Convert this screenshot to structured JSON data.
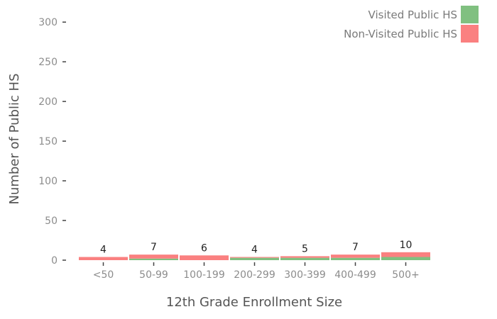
{
  "chart_data": {
    "type": "bar",
    "stacked": true,
    "xlabel": "12th Grade Enrollment Size",
    "ylabel": "Number of Public HS",
    "categories": [
      "<50",
      "50-99",
      "100-199",
      "200-299",
      "300-399",
      "400-499",
      "500+"
    ],
    "series": [
      {
        "name": "Visited Public HS",
        "color": "#80c080",
        "values": [
          0,
          2,
          0,
          3,
          3,
          3,
          4
        ]
      },
      {
        "name": "Non-Visited Public HS",
        "color": "#fa8080",
        "values": [
          4,
          5,
          6,
          1,
          2,
          4,
          6
        ]
      }
    ],
    "totals": [
      4,
      7,
      6,
      4,
      5,
      7,
      10
    ],
    "ylim": [
      0,
      310
    ],
    "yticks": [
      0,
      50,
      100,
      150,
      200,
      250,
      300
    ],
    "legend_position": "top-right",
    "grid": false
  }
}
